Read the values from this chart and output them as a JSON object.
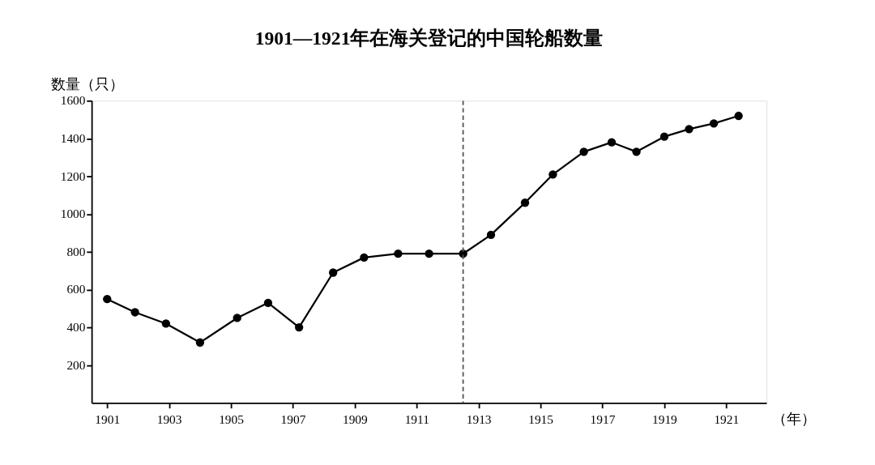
{
  "chart_data": {
    "type": "line",
    "title": "1901—1921年在海关登记的中国轮船数量",
    "xlabel": "（年）",
    "ylabel": "数量（只）",
    "x": [
      1901.0,
      1901.9,
      1902.9,
      1904.0,
      1905.2,
      1906.2,
      1907.2,
      1908.3,
      1909.3,
      1910.4,
      1911.4,
      1912.5,
      1913.4,
      1914.5,
      1915.4,
      1916.4,
      1917.3,
      1918.1,
      1919.0,
      1919.8,
      1920.6,
      1921.4
    ],
    "series": [
      {
        "color": "#000000",
        "values": [
          550,
          480,
          420,
          320,
          450,
          530,
          400,
          690,
          770,
          790,
          790,
          790,
          890,
          1060,
          1210,
          1330,
          1380,
          1330,
          1410,
          1450,
          1480,
          1520
        ]
      }
    ],
    "xlim": [
      1900.5,
      1922.3
    ],
    "xticks": [
      1901,
      1903,
      1905,
      1907,
      1909,
      1911,
      1913,
      1915,
      1917,
      1919,
      1921
    ],
    "ylim": [
      0,
      1600
    ],
    "yticks": [
      200,
      400,
      600,
      800,
      1000,
      1200,
      1400,
      1600
    ],
    "ref_lines": [
      {
        "axis": "x",
        "value": 1912.5,
        "color": "#555555",
        "line_style": "dashed"
      }
    ],
    "grid": false,
    "marker": "circle",
    "line_style": "solid"
  }
}
